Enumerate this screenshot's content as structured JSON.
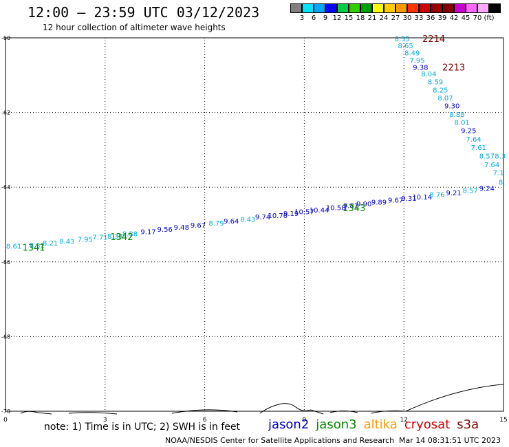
{
  "header": {
    "title": "12:00 – 23:59 UTC 03/12/2023",
    "subtitle": "12 hour collection of altimeter wave heights"
  },
  "colorbar": {
    "colors": [
      "#808080",
      "#00e5ff",
      "#00a8ff",
      "#0000ff",
      "#00cc44",
      "#33cc00",
      "#00a000",
      "#ffff00",
      "#ffcc00",
      "#ff9900",
      "#ff3300",
      "#cc0000",
      "#990000",
      "#800000",
      "#cc00cc",
      "#ff66ff",
      "#ffaaff",
      "#000000"
    ],
    "labels": [
      "3",
      "6",
      "9",
      "12",
      "15",
      "18",
      "21",
      "24",
      "27",
      "30",
      "33",
      "36",
      "39",
      "42",
      "45",
      "70",
      "(ft)"
    ]
  },
  "footer": {
    "note": "note: 1) Time is in UTC; 2) SWH is in feet",
    "credit": "NOAA/NESDIS Center for Satellite Applications and Research",
    "timestamp": "Mar 14 08:31:51 UTC 2023",
    "satellites": [
      {
        "name": "jason2",
        "color": "#0000cc"
      },
      {
        "name": "jason3",
        "color": "#008800"
      },
      {
        "name": "altika",
        "color": "#ff9900"
      },
      {
        "name": "cryosat",
        "color": "#cc0000"
      },
      {
        "name": "s3a",
        "color": "#800000"
      }
    ]
  },
  "chart_data": {
    "type": "scatter",
    "title": "12:00 – 23:59 UTC 03/12/2023",
    "subtitle": "12 hour collection of altimeter wave heights",
    "x_ticks": [
      "0",
      "3",
      "6",
      "9",
      "12",
      "15"
    ],
    "y_ticks": [
      "-60",
      "-62",
      "-64",
      "-66",
      "-68",
      "-70"
    ],
    "xlim": [
      0,
      15
    ],
    "ylim": [
      -70,
      -60
    ],
    "grid": true,
    "unit": "ft",
    "labels": [
      {
        "text": "8.61",
        "lon": 0.25,
        "lat": -65.57,
        "color": "#00aadd"
      },
      {
        "text": "8.32",
        "lon": 0.95,
        "lat": -65.55,
        "color": "#00aadd"
      },
      {
        "text": "8.21",
        "lon": 1.35,
        "lat": -65.49,
        "color": "#00aadd"
      },
      {
        "text": "8.43",
        "lon": 1.85,
        "lat": -65.44,
        "color": "#00aadd"
      },
      {
        "text": "7.95",
        "lon": 2.4,
        "lat": -65.39,
        "color": "#00aadd"
      },
      {
        "text": "7.71",
        "lon": 2.85,
        "lat": -65.33,
        "color": "#00aadd"
      },
      {
        "text": "8.38",
        "lon": 3.3,
        "lat": -65.3,
        "color": "#00aadd"
      },
      {
        "text": "8.88",
        "lon": 3.75,
        "lat": -65.24,
        "color": "#00aadd"
      },
      {
        "text": "9.17",
        "lon": 4.3,
        "lat": -65.18,
        "color": "#0000cc"
      },
      {
        "text": "9.56",
        "lon": 4.8,
        "lat": -65.12,
        "color": "#0000cc"
      },
      {
        "text": "9.48",
        "lon": 5.3,
        "lat": -65.06,
        "color": "#0000cc"
      },
      {
        "text": "9.67",
        "lon": 5.8,
        "lat": -65.01,
        "color": "#0000cc"
      },
      {
        "text": "8.79",
        "lon": 6.35,
        "lat": -64.95,
        "color": "#00aadd"
      },
      {
        "text": "9.64",
        "lon": 6.8,
        "lat": -64.9,
        "color": "#0000cc"
      },
      {
        "text": "8.43",
        "lon": 7.3,
        "lat": -64.85,
        "color": "#00aadd"
      },
      {
        "text": "9.74",
        "lon": 7.75,
        "lat": -64.79,
        "color": "#0000cc"
      },
      {
        "text": "10.70",
        "lon": 8.2,
        "lat": -64.75,
        "color": "#0000cc"
      },
      {
        "text": "9.19",
        "lon": 8.6,
        "lat": -64.7,
        "color": "#0000cc"
      },
      {
        "text": "10.57",
        "lon": 9.0,
        "lat": -64.65,
        "color": "#0000cc"
      },
      {
        "text": "10.44",
        "lon": 9.45,
        "lat": -64.6,
        "color": "#0000cc"
      },
      {
        "text": "10.58",
        "lon": 9.95,
        "lat": -64.54,
        "color": "#0000cc"
      },
      {
        "text": "9.81",
        "lon": 10.4,
        "lat": -64.48,
        "color": "#0000cc"
      },
      {
        "text": "9.90",
        "lon": 10.8,
        "lat": -64.44,
        "color": "#0000cc"
      },
      {
        "text": "9.89",
        "lon": 11.25,
        "lat": -64.39,
        "color": "#0000cc"
      },
      {
        "text": "9.67",
        "lon": 11.75,
        "lat": -64.34,
        "color": "#0000cc"
      },
      {
        "text": "9.31",
        "lon": 12.15,
        "lat": -64.29,
        "color": "#0000cc"
      },
      {
        "text": "10.14",
        "lon": 12.55,
        "lat": -64.25,
        "color": "#0000cc"
      },
      {
        "text": "8.76",
        "lon": 13.0,
        "lat": -64.19,
        "color": "#00aadd"
      },
      {
        "text": "9.21",
        "lon": 13.5,
        "lat": -64.14,
        "color": "#0000cc"
      },
      {
        "text": "8.57",
        "lon": 14.0,
        "lat": -64.08,
        "color": "#00aadd"
      },
      {
        "text": "9.24",
        "lon": 14.5,
        "lat": -64.02,
        "color": "#0000cc"
      },
      {
        "text": "8.55",
        "lon": 11.95,
        "lat": -60.02,
        "color": "#00aadd"
      },
      {
        "text": "8.65",
        "lon": 12.05,
        "lat": -60.2,
        "color": "#00aadd"
      },
      {
        "text": "8.49",
        "lon": 12.25,
        "lat": -60.4,
        "color": "#00aadd"
      },
      {
        "text": "7.95",
        "lon": 12.4,
        "lat": -60.6,
        "color": "#00aadd"
      },
      {
        "text": "9.38",
        "lon": 12.5,
        "lat": -60.78,
        "color": "#0000cc"
      },
      {
        "text": "8.04",
        "lon": 12.75,
        "lat": -60.96,
        "color": "#00aadd"
      },
      {
        "text": "8.59",
        "lon": 12.95,
        "lat": -61.17,
        "color": "#00aadd"
      },
      {
        "text": "8.25",
        "lon": 13.1,
        "lat": -61.39,
        "color": "#00aadd"
      },
      {
        "text": "8.07",
        "lon": 13.25,
        "lat": -61.6,
        "color": "#00aadd"
      },
      {
        "text": "9.30",
        "lon": 13.45,
        "lat": -61.81,
        "color": "#0000cc"
      },
      {
        "text": "8.88",
        "lon": 13.6,
        "lat": -62.04,
        "color": "#00aadd"
      },
      {
        "text": "8.01",
        "lon": 13.75,
        "lat": -62.26,
        "color": "#00aadd"
      },
      {
        "text": "9.25",
        "lon": 13.95,
        "lat": -62.48,
        "color": "#0000cc"
      },
      {
        "text": "7.64",
        "lon": 14.1,
        "lat": -62.71,
        "color": "#00aadd"
      },
      {
        "text": "7.61",
        "lon": 14.25,
        "lat": -62.93,
        "color": "#00aadd"
      },
      {
        "text": "8.57",
        "lon": 14.5,
        "lat": -63.16,
        "color": "#00aadd"
      },
      {
        "text": "8.3",
        "lon": 14.9,
        "lat": -63.16,
        "color": "#00aadd"
      },
      {
        "text": "7.64",
        "lon": 14.65,
        "lat": -63.39,
        "color": "#00aadd"
      },
      {
        "text": "7.1",
        "lon": 14.85,
        "lat": -63.6,
        "color": "#00aadd"
      },
      {
        "text": "8.",
        "lon": 14.95,
        "lat": -63.86,
        "color": "#00aadd"
      }
    ],
    "orbits": [
      {
        "text": "1341",
        "lon": 0.85,
        "lat": -65.61,
        "color": "#008800"
      },
      {
        "text": "1342",
        "lon": 3.5,
        "lat": -65.32,
        "color": "#008800"
      },
      {
        "text": "1343",
        "lon": 10.5,
        "lat": -64.55,
        "color": "#008800"
      },
      {
        "text": "2214",
        "lon": 12.9,
        "lat": -60.02,
        "color": "#800000"
      },
      {
        "text": "2213",
        "lon": 13.5,
        "lat": -60.78,
        "color": "#800000"
      }
    ]
  }
}
